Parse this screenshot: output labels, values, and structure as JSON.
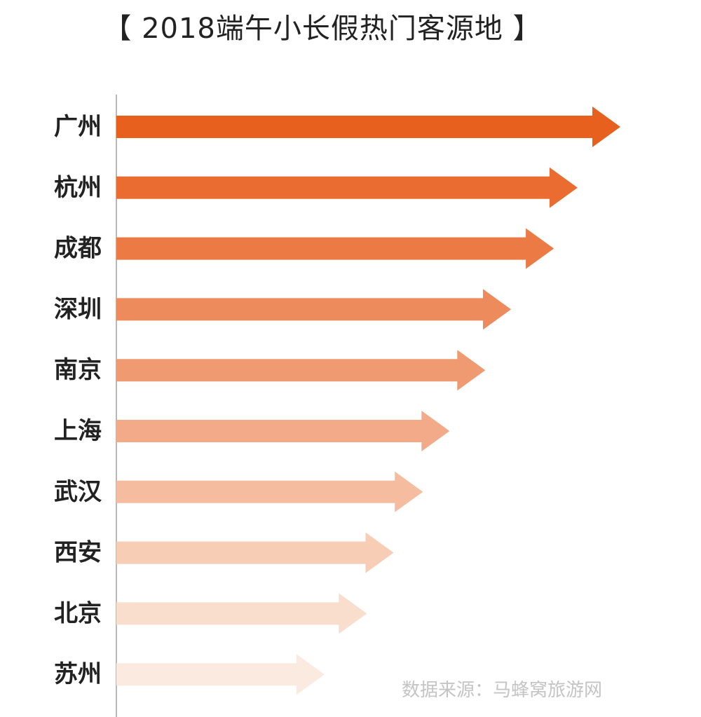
{
  "chart_data": {
    "type": "bar",
    "orientation": "horizontal",
    "title": "【 2018端午小长假热门客源地 】",
    "categories": [
      "广州",
      "杭州",
      "成都",
      "深圳",
      "南京",
      "上海",
      "武汉",
      "西安",
      "北京",
      "苏州"
    ],
    "values": [
      100,
      91.5,
      86.8,
      78.3,
      73.2,
      66.1,
      60.8,
      55.0,
      49.7,
      41.3
    ],
    "value_axis_shown": false,
    "xlim": [
      0,
      100
    ],
    "grid": false,
    "legend": "none",
    "colors": [
      "#E8601D",
      "#EA6C31",
      "#EC7A45",
      "#EE8B5C",
      "#F09A72",
      "#F2AA88",
      "#F5BC9F",
      "#F7CDB6",
      "#F9DDCD",
      "#FBEAE0"
    ],
    "bar_shape": "arrow",
    "source_note": "数据来源：马蜂窝旅游网"
  }
}
